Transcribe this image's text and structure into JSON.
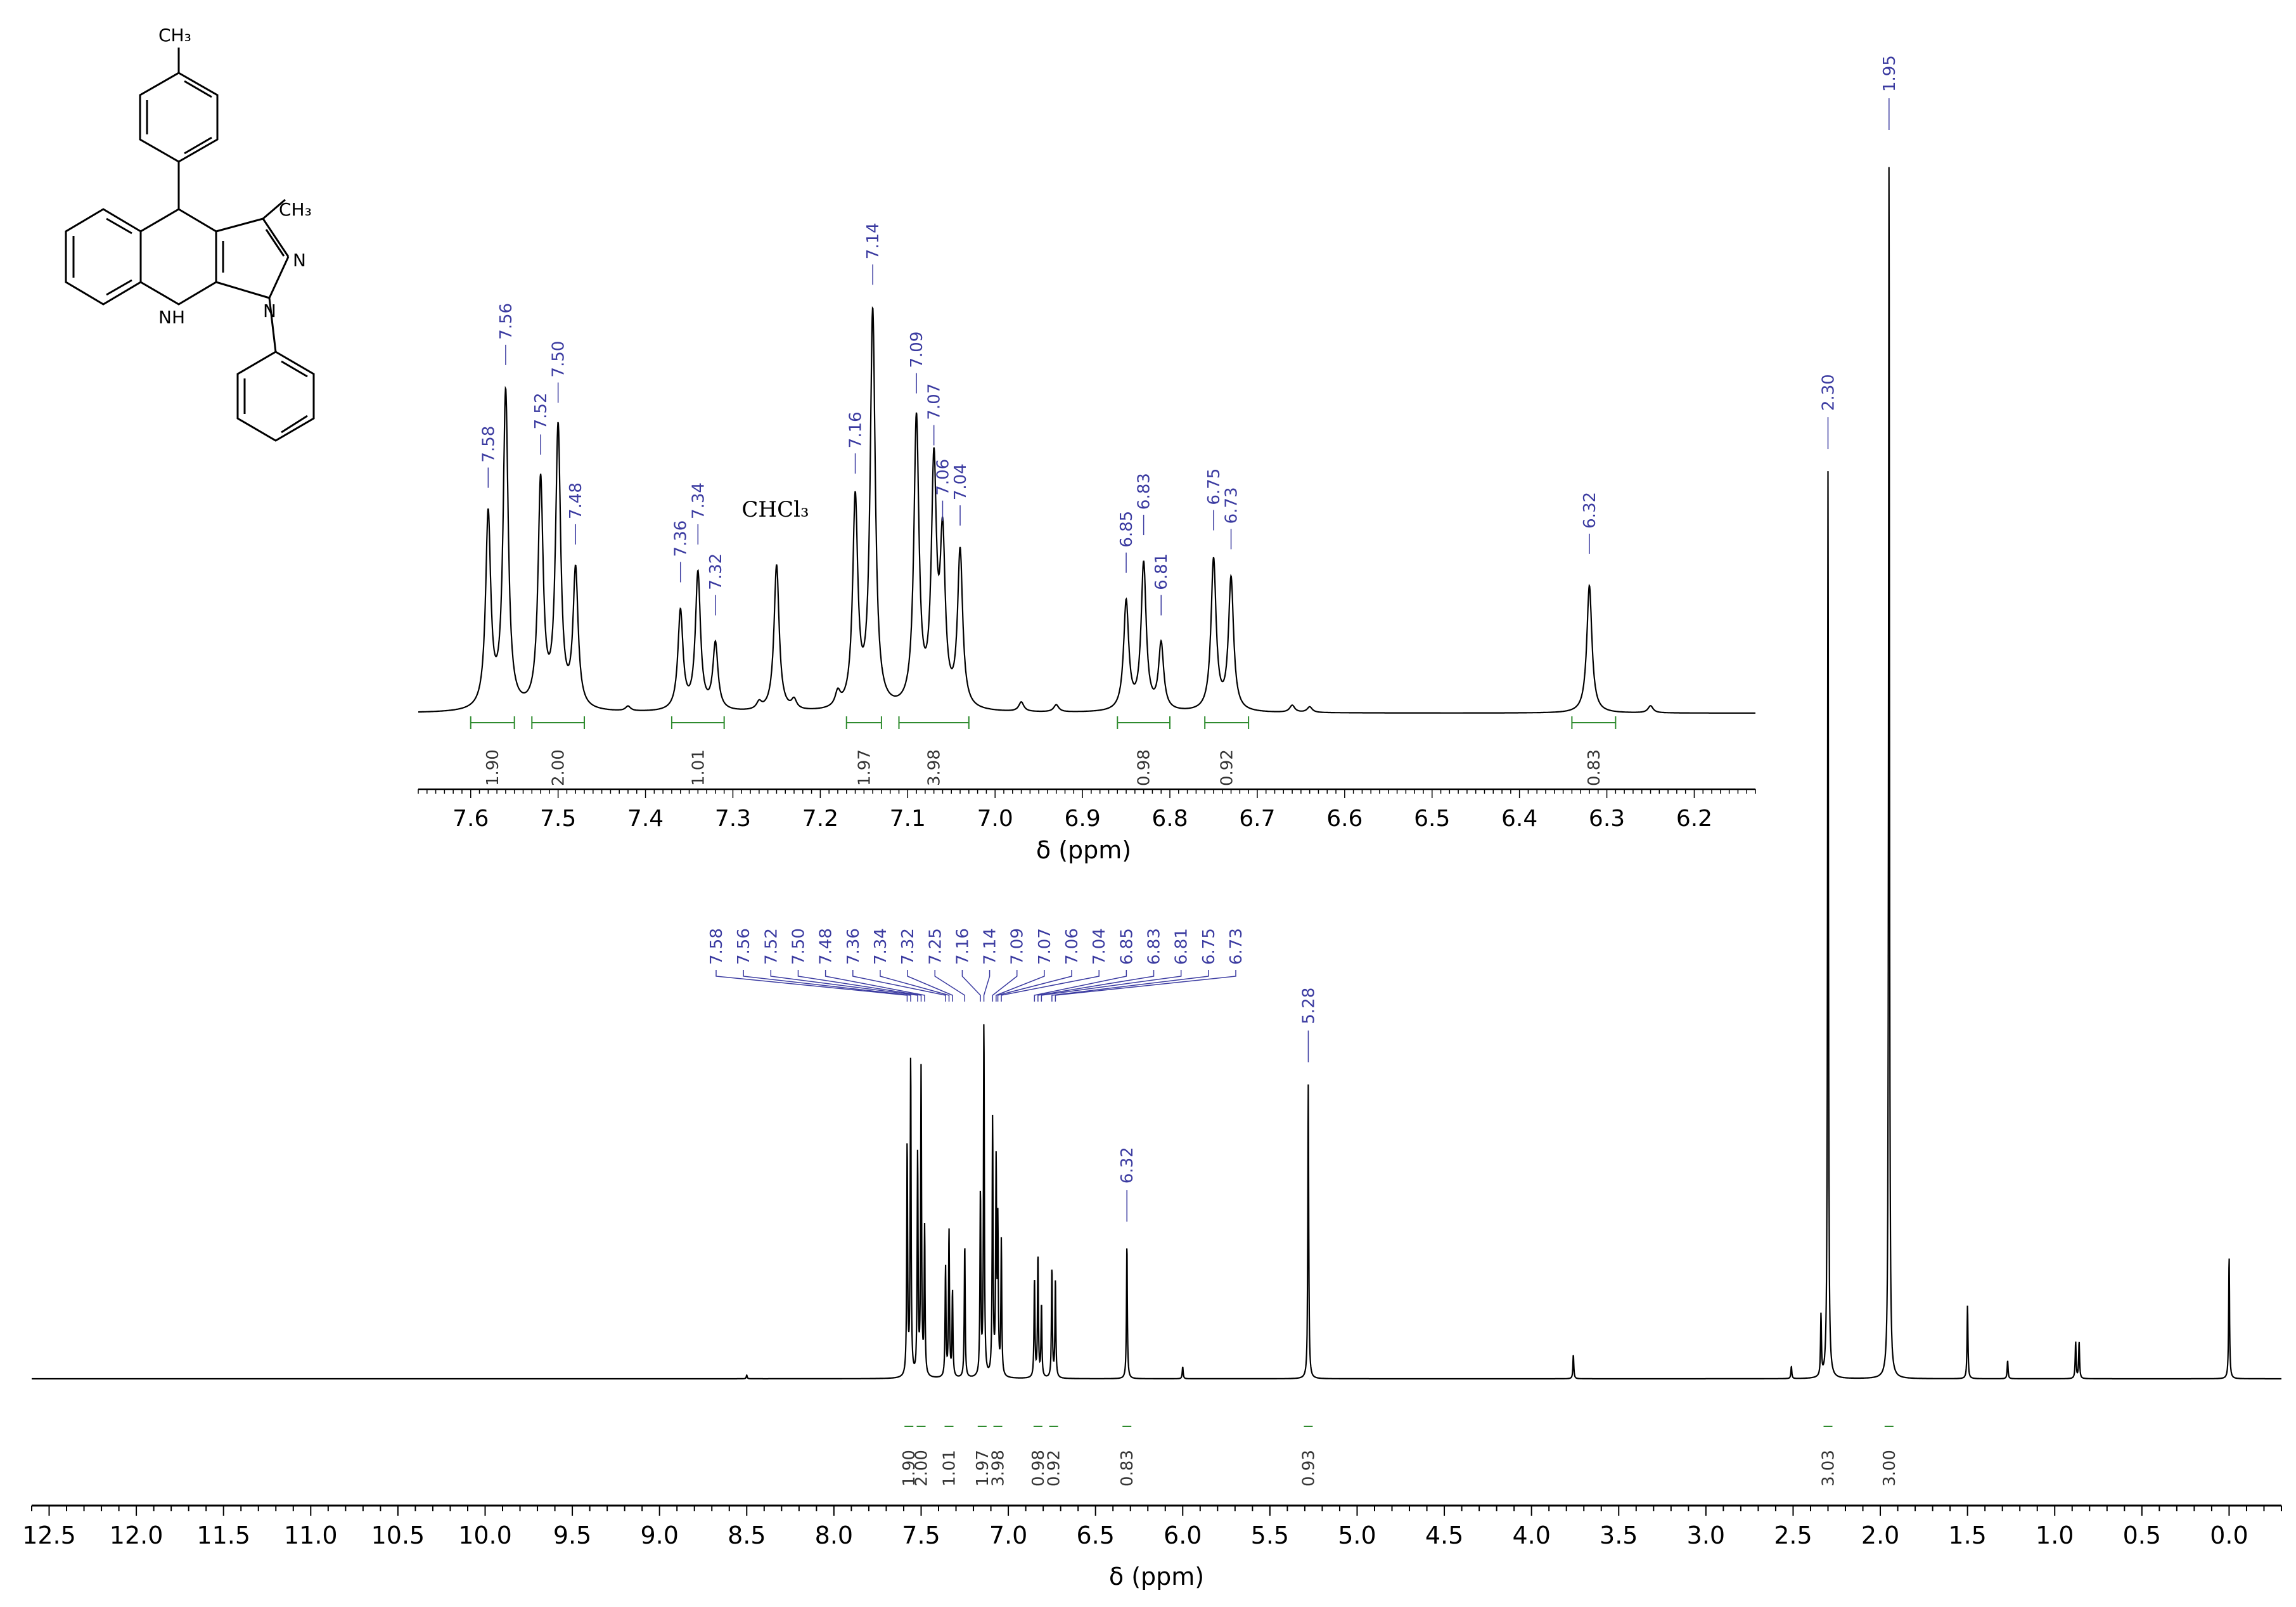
{
  "chart_data": [
    {
      "name": "main",
      "type": "line",
      "title": "",
      "xlabel": "δ (ppm)",
      "ylabel": "",
      "xlim": [
        12.6,
        -0.3
      ],
      "x_reversed": true,
      "grid": false,
      "xticks": [
        12.5,
        12.0,
        11.5,
        11.0,
        10.5,
        10.0,
        9.5,
        9.0,
        8.5,
        8.0,
        7.5,
        7.0,
        6.5,
        6.0,
        5.5,
        5.0,
        4.5,
        4.0,
        3.5,
        3.0,
        2.5,
        2.0,
        1.5,
        1.0,
        0.5,
        0.0
      ],
      "xtick_labels": [
        "12.5",
        "12.0",
        "11.5",
        "11.0",
        "10.5",
        "10.0",
        "9.5",
        "9.0",
        "8.5",
        "8.0",
        "7.5",
        "7.0",
        "6.5",
        "6.0",
        "5.5",
        "5.0",
        "4.5",
        "4.0",
        "3.5",
        "3.0",
        "2.5",
        "2.0",
        "1.5",
        "1.0",
        "0.5",
        "0.0"
      ],
      "peaks": [
        {
          "ppm": 7.58,
          "h": 0.19
        },
        {
          "ppm": 7.56,
          "h": 0.26
        },
        {
          "ppm": 7.52,
          "h": 0.18
        },
        {
          "ppm": 7.5,
          "h": 0.25
        },
        {
          "ppm": 7.48,
          "h": 0.12
        },
        {
          "ppm": 7.36,
          "h": 0.09
        },
        {
          "ppm": 7.34,
          "h": 0.12
        },
        {
          "ppm": 7.32,
          "h": 0.07
        },
        {
          "ppm": 7.25,
          "h": 0.11
        },
        {
          "ppm": 7.16,
          "h": 0.15
        },
        {
          "ppm": 7.14,
          "h": 0.29
        },
        {
          "ppm": 7.09,
          "h": 0.21
        },
        {
          "ppm": 7.07,
          "h": 0.17
        },
        {
          "ppm": 7.06,
          "h": 0.12
        },
        {
          "ppm": 7.04,
          "h": 0.11
        },
        {
          "ppm": 6.85,
          "h": 0.08
        },
        {
          "ppm": 6.83,
          "h": 0.1
        },
        {
          "ppm": 6.81,
          "h": 0.06
        },
        {
          "ppm": 6.75,
          "h": 0.09
        },
        {
          "ppm": 6.73,
          "h": 0.08
        },
        {
          "ppm": 6.32,
          "h": 0.11
        },
        {
          "ppm": 5.28,
          "h": 0.24
        },
        {
          "ppm": 2.34,
          "h": 0.05
        },
        {
          "ppm": 2.3,
          "h": 0.74
        },
        {
          "ppm": 2.51,
          "h": 0.01
        },
        {
          "ppm": 1.95,
          "h": 1.0
        },
        {
          "ppm": 1.5,
          "h": 0.06
        },
        {
          "ppm": 1.27,
          "h": 0.015
        },
        {
          "ppm": 0.88,
          "h": 0.03
        },
        {
          "ppm": 0.86,
          "h": 0.03
        },
        {
          "ppm": 0.0,
          "h": 0.1
        },
        {
          "ppm": 3.76,
          "h": 0.02
        },
        {
          "ppm": 6.0,
          "h": 0.01
        },
        {
          "ppm": 8.5,
          "h": 0.003
        }
      ],
      "peak_labels_group": [
        "7.58",
        "7.56",
        "7.52",
        "7.50",
        "7.48",
        "7.36",
        "7.34",
        "7.32",
        "7.25",
        "7.16",
        "7.14",
        "7.09",
        "7.07",
        "7.06",
        "7.04",
        "6.85",
        "6.83",
        "6.81",
        "6.75",
        "6.73"
      ],
      "peak_labels_single": [
        {
          "ppm": 6.32,
          "label": "6.32"
        },
        {
          "ppm": 5.28,
          "label": "5.28"
        },
        {
          "ppm": 2.3,
          "label": "2.30"
        },
        {
          "ppm": 1.95,
          "label": "1.95"
        }
      ],
      "integrals": [
        {
          "ppm": 7.57,
          "label": "1.90"
        },
        {
          "ppm": 7.5,
          "label": "2.00"
        },
        {
          "ppm": 7.34,
          "label": "1.01"
        },
        {
          "ppm": 7.15,
          "label": "1.97"
        },
        {
          "ppm": 7.06,
          "label": "3.98"
        },
        {
          "ppm": 6.83,
          "label": "0.98"
        },
        {
          "ppm": 6.74,
          "label": "0.92"
        },
        {
          "ppm": 6.32,
          "label": "0.83"
        },
        {
          "ppm": 5.28,
          "label": "0.93"
        },
        {
          "ppm": 2.3,
          "label": "3.03"
        },
        {
          "ppm": 1.95,
          "label": "3.00"
        }
      ]
    },
    {
      "name": "inset",
      "type": "line",
      "title": "",
      "xlabel": "δ (ppm)",
      "ylabel": "",
      "xlim": [
        7.66,
        6.13
      ],
      "x_reversed": true,
      "grid": false,
      "xticks": [
        7.6,
        7.5,
        7.4,
        7.3,
        7.2,
        7.1,
        7.0,
        6.9,
        6.8,
        6.7,
        6.6,
        6.5,
        6.4,
        6.3,
        6.2
      ],
      "xtick_labels": [
        "7.6",
        "7.5",
        "7.4",
        "7.3",
        "7.2",
        "7.1",
        "7.0",
        "6.9",
        "6.8",
        "6.7",
        "6.6",
        "6.5",
        "6.4",
        "6.3",
        "6.2"
      ],
      "peaks": [
        {
          "ppm": 7.58,
          "h": 0.41
        },
        {
          "ppm": 7.56,
          "h": 0.67
        },
        {
          "ppm": 7.52,
          "h": 0.48
        },
        {
          "ppm": 7.5,
          "h": 0.59
        },
        {
          "ppm": 7.48,
          "h": 0.29
        },
        {
          "ppm": 7.36,
          "h": 0.21
        },
        {
          "ppm": 7.34,
          "h": 0.29
        },
        {
          "ppm": 7.32,
          "h": 0.14
        },
        {
          "ppm": 7.25,
          "h": 0.31
        },
        {
          "ppm": 7.16,
          "h": 0.44
        },
        {
          "ppm": 7.14,
          "h": 0.84
        },
        {
          "ppm": 7.09,
          "h": 0.61
        },
        {
          "ppm": 7.07,
          "h": 0.5
        },
        {
          "ppm": 7.06,
          "h": 0.34
        },
        {
          "ppm": 7.04,
          "h": 0.33
        },
        {
          "ppm": 6.85,
          "h": 0.23
        },
        {
          "ppm": 6.83,
          "h": 0.31
        },
        {
          "ppm": 6.81,
          "h": 0.14
        },
        {
          "ppm": 6.75,
          "h": 0.32
        },
        {
          "ppm": 6.73,
          "h": 0.28
        },
        {
          "ppm": 6.32,
          "h": 0.27
        },
        {
          "ppm": 6.25,
          "h": 0.015
        },
        {
          "ppm": 6.97,
          "h": 0.02
        },
        {
          "ppm": 6.93,
          "h": 0.015
        },
        {
          "ppm": 7.42,
          "h": 0.01
        },
        {
          "ppm": 7.27,
          "h": 0.015
        },
        {
          "ppm": 7.23,
          "h": 0.02
        },
        {
          "ppm": 7.18,
          "h": 0.03
        },
        {
          "ppm": 6.66,
          "h": 0.015
        },
        {
          "ppm": 6.64,
          "h": 0.012
        }
      ],
      "peak_labels": [
        {
          "ppm": 7.58,
          "label": "7.58"
        },
        {
          "ppm": 7.56,
          "label": "7.56"
        },
        {
          "ppm": 7.52,
          "label": "7.52"
        },
        {
          "ppm": 7.5,
          "label": "7.50"
        },
        {
          "ppm": 7.48,
          "label": "7.48"
        },
        {
          "ppm": 7.36,
          "label": "7.36"
        },
        {
          "ppm": 7.34,
          "label": "7.34"
        },
        {
          "ppm": 7.32,
          "label": "7.32"
        },
        {
          "ppm": 7.16,
          "label": "7.16"
        },
        {
          "ppm": 7.14,
          "label": "7.14"
        },
        {
          "ppm": 7.09,
          "label": "7.09"
        },
        {
          "ppm": 7.07,
          "label": "7.07"
        },
        {
          "ppm": 7.06,
          "label": "7.06"
        },
        {
          "ppm": 7.04,
          "label": "7.04"
        },
        {
          "ppm": 6.85,
          "label": "6.85"
        },
        {
          "ppm": 6.83,
          "label": "6.83"
        },
        {
          "ppm": 6.81,
          "label": "6.81"
        },
        {
          "ppm": 6.75,
          "label": "6.75"
        },
        {
          "ppm": 6.73,
          "label": "6.73"
        },
        {
          "ppm": 6.32,
          "label": "6.32"
        }
      ],
      "annotations": [
        {
          "ppm": 7.25,
          "text": "CHCl₃"
        }
      ],
      "integrals": [
        {
          "from": 7.6,
          "to": 7.55,
          "label": "1.90"
        },
        {
          "from": 7.53,
          "to": 7.47,
          "label": "2.00"
        },
        {
          "from": 7.37,
          "to": 7.31,
          "label": "1.01"
        },
        {
          "from": 7.17,
          "to": 7.13,
          "label": "1.97"
        },
        {
          "from": 7.11,
          "to": 7.03,
          "label": "3.98"
        },
        {
          "from": 6.86,
          "to": 6.8,
          "label": "0.98"
        },
        {
          "from": 6.76,
          "to": 6.71,
          "label": "0.92"
        },
        {
          "from": 6.34,
          "to": 6.29,
          "label": "0.83"
        }
      ]
    }
  ],
  "structure": {
    "labels": [
      "CH₃",
      "CH₃",
      "N",
      "N",
      "NH"
    ]
  },
  "colors": {
    "spectrum": "#000000",
    "peak_label": "#3a3aa0",
    "integral": "#2e8b2e",
    "axis": "#000000"
  }
}
